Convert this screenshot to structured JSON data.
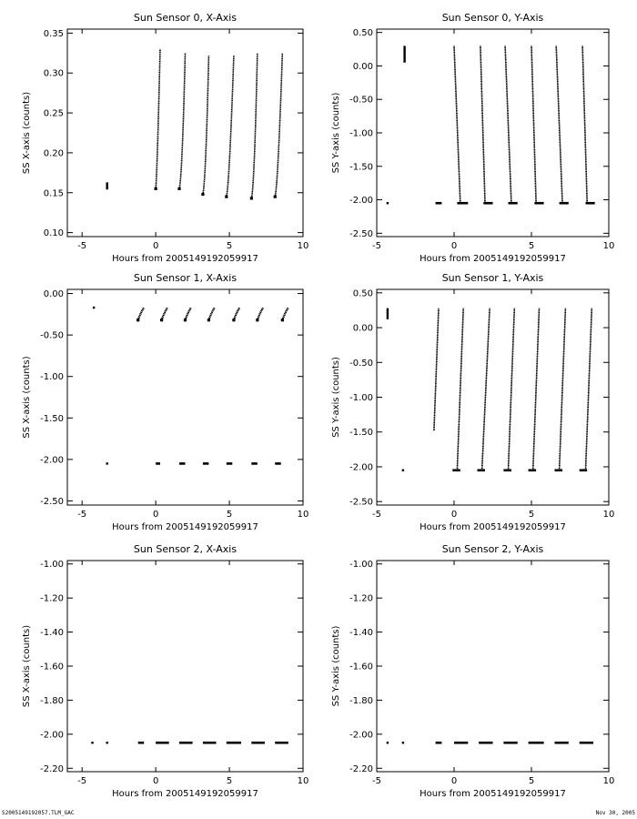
{
  "footer": {
    "left": "S2005149192057.TLM_GAC",
    "right": "Nov 30, 2005"
  },
  "chart_data": [
    {
      "type": "scatter",
      "title": "Sun Sensor 0, X-Axis",
      "xlabel": "Hours from 2005149192059917",
      "ylabel": "SS X-axis (counts)",
      "xlim": [
        -6,
        10
      ],
      "ylim": [
        0.095,
        0.355
      ],
      "xticks": [
        -5,
        0,
        5,
        10
      ],
      "yticks": [
        0.1,
        0.15,
        0.2,
        0.25,
        0.3,
        0.35
      ],
      "ytick_labels": [
        "0.10",
        "0.15",
        "0.20",
        "0.25",
        "0.30",
        "0.35"
      ],
      "series": [
        {
          "shape": "seg",
          "x": -3.3,
          "y": [
            0.154,
            0.163
          ]
        },
        {
          "shape": "curve",
          "x": [
            0.0,
            0.1,
            0.3
          ],
          "y": [
            0.155,
            0.175,
            0.33
          ]
        },
        {
          "shape": "curve",
          "x": [
            1.6,
            1.8,
            2.0
          ],
          "y": [
            0.155,
            0.17,
            0.325
          ]
        },
        {
          "shape": "curve",
          "x": [
            3.2,
            3.4,
            3.6
          ],
          "y": [
            0.148,
            0.165,
            0.322
          ]
        },
        {
          "shape": "curve",
          "x": [
            4.8,
            5.0,
            5.3
          ],
          "y": [
            0.145,
            0.16,
            0.322
          ]
        },
        {
          "shape": "curve",
          "x": [
            6.5,
            6.7,
            6.9
          ],
          "y": [
            0.143,
            0.158,
            0.325
          ]
        },
        {
          "shape": "curve",
          "x": [
            8.1,
            8.3,
            8.6
          ],
          "y": [
            0.145,
            0.16,
            0.325
          ]
        }
      ]
    },
    {
      "type": "scatter",
      "title": "Sun Sensor 0, Y-Axis",
      "xlabel": "Hours from 2005149192059917",
      "ylabel": "SS Y-axis (counts)",
      "xlim": [
        -5,
        10
      ],
      "ylim": [
        -2.55,
        0.55
      ],
      "xticks": [
        -5,
        0,
        5,
        10
      ],
      "yticks": [
        -2.5,
        -2.0,
        -1.5,
        -1.0,
        -0.5,
        0.0,
        0.5
      ],
      "ytick_labels": [
        "-2.50",
        "-2.00",
        "-1.50",
        "-1.00",
        "-0.50",
        "0.00",
        "0.50"
      ],
      "series": [
        {
          "shape": "pt",
          "x": -4.3,
          "y": -2.05
        },
        {
          "shape": "seg",
          "x": -3.2,
          "y": [
            0.05,
            0.3
          ]
        },
        {
          "shape": "hseg",
          "x": [
            -1.2,
            -0.8
          ],
          "y": -2.05
        },
        {
          "shape": "line",
          "x": [
            0.0,
            0.4
          ],
          "y": [
            0.3,
            -2.05
          ]
        },
        {
          "shape": "line",
          "x": [
            1.7,
            2.0
          ],
          "y": [
            0.3,
            -2.05
          ]
        },
        {
          "shape": "line",
          "x": [
            3.3,
            3.7
          ],
          "y": [
            0.3,
            -2.05
          ]
        },
        {
          "shape": "line",
          "x": [
            5.0,
            5.3
          ],
          "y": [
            0.3,
            -2.05
          ]
        },
        {
          "shape": "line",
          "x": [
            6.6,
            7.0
          ],
          "y": [
            0.3,
            -2.05
          ]
        },
        {
          "shape": "line",
          "x": [
            8.3,
            8.6
          ],
          "y": [
            0.3,
            -2.05
          ]
        },
        {
          "shape": "hseg",
          "x": [
            0.2,
            0.9
          ],
          "y": -2.05
        },
        {
          "shape": "hseg",
          "x": [
            1.9,
            2.5
          ],
          "y": -2.05
        },
        {
          "shape": "hseg",
          "x": [
            3.5,
            4.1
          ],
          "y": -2.05
        },
        {
          "shape": "hseg",
          "x": [
            5.2,
            5.8
          ],
          "y": -2.05
        },
        {
          "shape": "hseg",
          "x": [
            6.8,
            7.4
          ],
          "y": -2.05
        },
        {
          "shape": "hseg",
          "x": [
            8.5,
            9.1
          ],
          "y": -2.05
        }
      ]
    },
    {
      "type": "scatter",
      "title": "Sun Sensor 1, X-Axis",
      "xlabel": "Hours from 2005149192059917",
      "ylabel": "SS X-axis (counts)",
      "xlim": [
        -6,
        10
      ],
      "ylim": [
        -2.55,
        0.05
      ],
      "xticks": [
        -5,
        0,
        5,
        10
      ],
      "yticks": [
        -2.5,
        -2.0,
        -1.5,
        -1.0,
        -0.5,
        0.0
      ],
      "ytick_labels": [
        "-2.50",
        "-2.00",
        "-1.50",
        "-1.00",
        "-0.50",
        "0.00"
      ],
      "series": [
        {
          "shape": "pt",
          "x": -4.2,
          "y": -0.17
        },
        {
          "shape": "pt",
          "x": -3.3,
          "y": -2.05
        },
        {
          "shape": "hook",
          "x": [
            -1.2,
            -1.0,
            -0.8
          ],
          "y": [
            -0.32,
            -0.22,
            -0.17
          ]
        },
        {
          "shape": "hook",
          "x": [
            0.4,
            0.6,
            0.8
          ],
          "y": [
            -0.32,
            -0.22,
            -0.17
          ]
        },
        {
          "shape": "hook",
          "x": [
            2.0,
            2.2,
            2.4
          ],
          "y": [
            -0.32,
            -0.22,
            -0.17
          ]
        },
        {
          "shape": "hook",
          "x": [
            3.6,
            3.8,
            4.0
          ],
          "y": [
            -0.32,
            -0.22,
            -0.17
          ]
        },
        {
          "shape": "hook",
          "x": [
            5.3,
            5.5,
            5.7
          ],
          "y": [
            -0.32,
            -0.22,
            -0.17
          ]
        },
        {
          "shape": "hook",
          "x": [
            6.9,
            7.1,
            7.3
          ],
          "y": [
            -0.32,
            -0.22,
            -0.17
          ]
        },
        {
          "shape": "hook",
          "x": [
            8.6,
            8.8,
            9.0
          ],
          "y": [
            -0.32,
            -0.22,
            -0.17
          ]
        },
        {
          "shape": "hseg",
          "x": [
            0.0,
            0.3
          ],
          "y": -2.05
        },
        {
          "shape": "hseg",
          "x": [
            1.6,
            2.0
          ],
          "y": -2.05
        },
        {
          "shape": "hseg",
          "x": [
            3.2,
            3.6
          ],
          "y": -2.05
        },
        {
          "shape": "hseg",
          "x": [
            4.8,
            5.2
          ],
          "y": -2.05
        },
        {
          "shape": "hseg",
          "x": [
            6.5,
            6.9
          ],
          "y": -2.05
        },
        {
          "shape": "hseg",
          "x": [
            8.1,
            8.5
          ],
          "y": -2.05
        }
      ]
    },
    {
      "type": "scatter",
      "title": "Sun Sensor 1, Y-Axis",
      "xlabel": "Hours from 2005149192059917",
      "ylabel": "SS Y-axis (counts)",
      "xlim": [
        -5,
        10
      ],
      "ylim": [
        -2.55,
        0.55
      ],
      "xticks": [
        -5,
        0,
        5,
        10
      ],
      "yticks": [
        -2.5,
        -2.0,
        -1.5,
        -1.0,
        -0.5,
        0.0,
        0.5
      ],
      "ytick_labels": [
        "-2.50",
        "-2.00",
        "-1.50",
        "-1.00",
        "-0.50",
        "0.00",
        "0.50"
      ],
      "series": [
        {
          "shape": "seg",
          "x": -4.3,
          "y": [
            0.12,
            0.28
          ]
        },
        {
          "shape": "pt",
          "x": -3.3,
          "y": -2.05
        },
        {
          "shape": "line",
          "x": [
            -1.3,
            -1.0
          ],
          "y": [
            -1.48,
            0.28
          ]
        },
        {
          "shape": "line",
          "x": [
            0.2,
            0.6
          ],
          "y": [
            -2.05,
            0.28
          ]
        },
        {
          "shape": "line",
          "x": [
            1.8,
            2.3
          ],
          "y": [
            -2.05,
            0.28
          ]
        },
        {
          "shape": "line",
          "x": [
            3.5,
            3.9
          ],
          "y": [
            -2.05,
            0.28
          ]
        },
        {
          "shape": "line",
          "x": [
            5.1,
            5.5
          ],
          "y": [
            -2.05,
            0.28
          ]
        },
        {
          "shape": "line",
          "x": [
            6.8,
            7.2
          ],
          "y": [
            -2.05,
            0.28
          ]
        },
        {
          "shape": "line",
          "x": [
            8.5,
            8.9
          ],
          "y": [
            -2.05,
            0.28
          ]
        },
        {
          "shape": "hseg",
          "x": [
            -0.1,
            0.4
          ],
          "y": -2.05
        },
        {
          "shape": "hseg",
          "x": [
            1.5,
            2.0
          ],
          "y": -2.05
        },
        {
          "shape": "hseg",
          "x": [
            3.2,
            3.7
          ],
          "y": -2.05
        },
        {
          "shape": "hseg",
          "x": [
            4.8,
            5.3
          ],
          "y": -2.05
        },
        {
          "shape": "hseg",
          "x": [
            6.5,
            7.0
          ],
          "y": -2.05
        },
        {
          "shape": "hseg",
          "x": [
            8.1,
            8.6
          ],
          "y": -2.05
        }
      ]
    },
    {
      "type": "scatter",
      "title": "Sun Sensor 2, X-Axis",
      "xlabel": "Hours from 2005149192059917",
      "ylabel": "SS X-axis (counts)",
      "xlim": [
        -6,
        10
      ],
      "ylim": [
        -2.22,
        -0.98
      ],
      "xticks": [
        -5,
        0,
        5,
        10
      ],
      "yticks": [
        -2.2,
        -2.0,
        -1.8,
        -1.6,
        -1.4,
        -1.2,
        -1.0
      ],
      "ytick_labels": [
        "-2.20",
        "-2.00",
        "-1.80",
        "-1.60",
        "-1.40",
        "-1.20",
        "-1.00"
      ],
      "series": [
        {
          "shape": "pt",
          "x": -4.3,
          "y": -2.05
        },
        {
          "shape": "pt",
          "x": -3.3,
          "y": -2.05
        },
        {
          "shape": "hseg",
          "x": [
            -1.2,
            -0.8
          ],
          "y": -2.05
        },
        {
          "shape": "hseg",
          "x": [
            0.0,
            0.9
          ],
          "y": -2.05
        },
        {
          "shape": "hseg",
          "x": [
            1.6,
            2.5
          ],
          "y": -2.05
        },
        {
          "shape": "hseg",
          "x": [
            3.2,
            4.1
          ],
          "y": -2.05
        },
        {
          "shape": "hseg",
          "x": [
            4.8,
            5.8
          ],
          "y": -2.05
        },
        {
          "shape": "hseg",
          "x": [
            6.5,
            7.4
          ],
          "y": -2.05
        },
        {
          "shape": "hseg",
          "x": [
            8.1,
            9.0
          ],
          "y": -2.05
        }
      ]
    },
    {
      "type": "scatter",
      "title": "Sun Sensor 2, Y-Axis",
      "xlabel": "Hours from 2005149192059917",
      "ylabel": "SS Y-axis (counts)",
      "xlim": [
        -5,
        10
      ],
      "ylim": [
        -2.22,
        -0.98
      ],
      "xticks": [
        -5,
        0,
        5,
        10
      ],
      "yticks": [
        -2.2,
        -2.0,
        -1.8,
        -1.6,
        -1.4,
        -1.2,
        -1.0
      ],
      "ytick_labels": [
        "-2.20",
        "-2.00",
        "-1.80",
        "-1.60",
        "-1.40",
        "-1.20",
        "-1.00"
      ],
      "series": [
        {
          "shape": "pt",
          "x": -4.3,
          "y": -2.05
        },
        {
          "shape": "pt",
          "x": -3.3,
          "y": -2.05
        },
        {
          "shape": "hseg",
          "x": [
            -1.2,
            -0.8
          ],
          "y": -2.05
        },
        {
          "shape": "hseg",
          "x": [
            0.0,
            0.9
          ],
          "y": -2.05
        },
        {
          "shape": "hseg",
          "x": [
            1.6,
            2.5
          ],
          "y": -2.05
        },
        {
          "shape": "hseg",
          "x": [
            3.2,
            4.1
          ],
          "y": -2.05
        },
        {
          "shape": "hseg",
          "x": [
            4.8,
            5.8
          ],
          "y": -2.05
        },
        {
          "shape": "hseg",
          "x": [
            6.5,
            7.4
          ],
          "y": -2.05
        },
        {
          "shape": "hseg",
          "x": [
            8.1,
            9.0
          ],
          "y": -2.05
        }
      ]
    }
  ]
}
